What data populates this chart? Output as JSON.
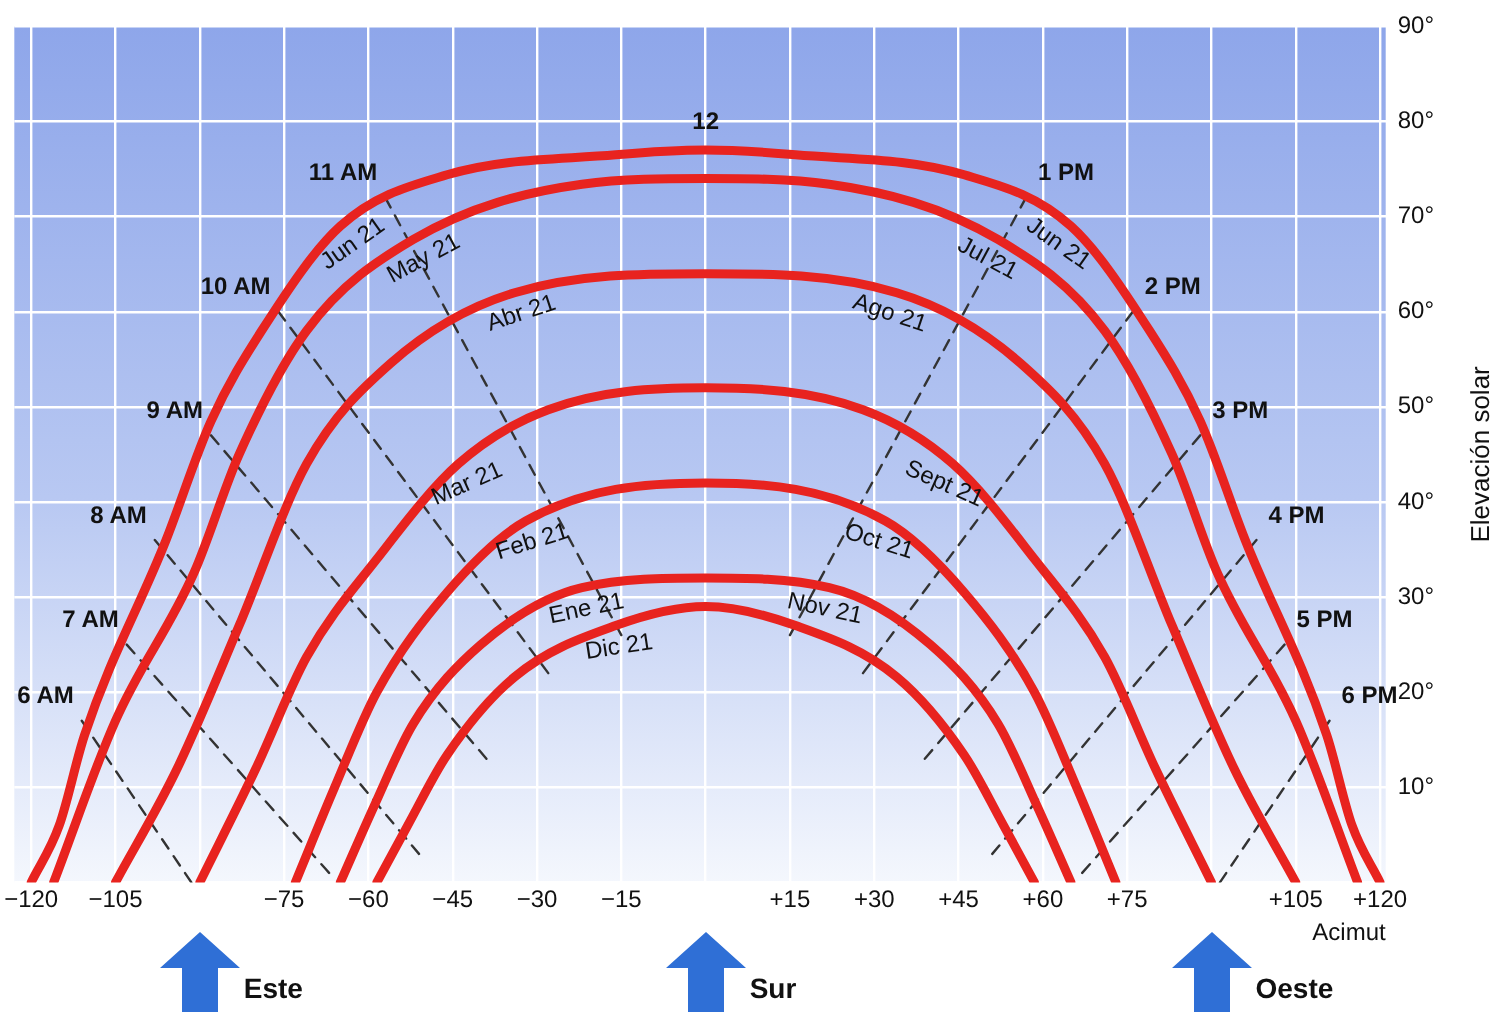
{
  "chart_data": {
    "type": "line",
    "xlabel": "Acimut",
    "ylabel": "Elevación solar",
    "xlim": [
      -123,
      121
    ],
    "ylim": [
      0,
      90
    ],
    "xticks": [
      {
        "value": -120,
        "label": "−120"
      },
      {
        "value": -105,
        "label": "−105"
      },
      {
        "value": -90,
        "label": null
      },
      {
        "value": -75,
        "label": "−75"
      },
      {
        "value": -60,
        "label": "−60"
      },
      {
        "value": -45,
        "label": "−45"
      },
      {
        "value": -30,
        "label": "−30"
      },
      {
        "value": -15,
        "label": "−15"
      },
      {
        "value": 0,
        "label": null
      },
      {
        "value": 15,
        "label": "+15"
      },
      {
        "value": 30,
        "label": "+30"
      },
      {
        "value": 45,
        "label": "+45"
      },
      {
        "value": 60,
        "label": "+60"
      },
      {
        "value": 75,
        "label": "+75"
      },
      {
        "value": 90,
        "label": null
      },
      {
        "value": 105,
        "label": "+105"
      },
      {
        "value": 120,
        "label": "+120"
      }
    ],
    "yticks": [
      {
        "value": 0,
        "label": null
      },
      {
        "value": 10,
        "label": "10°"
      },
      {
        "value": 20,
        "label": "20°"
      },
      {
        "value": 30,
        "label": "30°"
      },
      {
        "value": 40,
        "label": "40°"
      },
      {
        "value": 50,
        "label": "50°"
      },
      {
        "value": 60,
        "label": "60°"
      },
      {
        "value": 70,
        "label": "70°"
      },
      {
        "value": 80,
        "label": "80°"
      },
      {
        "value": 90,
        "label": "90°"
      }
    ],
    "grid": true,
    "series": [
      {
        "color": "#e8231f",
        "x": [
          -120,
          -115,
          -110.5,
          -96,
          -88,
          -79,
          -65,
          -46,
          -16,
          0,
          16,
          46,
          65,
          79,
          88,
          96,
          110.5,
          115,
          120
        ],
        "values": [
          0,
          6,
          15.5,
          36,
          48.5,
          58,
          69,
          74.4,
          76.5,
          77,
          76.5,
          74.4,
          69,
          58,
          48.5,
          36,
          15.5,
          6,
          0
        ]
      },
      {
        "color": "#e8231f",
        "x": [
          -116,
          -105,
          -91,
          -83,
          -71,
          -52,
          -22,
          0,
          22,
          52,
          71,
          83,
          91,
          105,
          116
        ],
        "values": [
          0,
          17,
          32.6,
          45,
          58,
          67.6,
          73.4,
          74,
          73.4,
          67.6,
          58,
          45,
          32.6,
          17,
          0
        ]
      },
      {
        "color": "#e8231f",
        "x": [
          -105,
          -94,
          -83,
          -71,
          -56,
          -34,
          0,
          34,
          56,
          71,
          83,
          94,
          105
        ],
        "values": [
          0,
          12,
          27,
          44,
          54.6,
          62,
          64,
          62,
          54.6,
          44,
          27,
          12,
          0
        ]
      },
      {
        "color": "#e8231f",
        "x": [
          -90,
          -80,
          -71,
          -58.5,
          -44,
          -28,
          0,
          28,
          44,
          58.5,
          71,
          80,
          90
        ],
        "values": [
          0,
          12,
          23.7,
          34,
          44,
          49.7,
          52,
          49.7,
          44,
          34,
          23.7,
          12,
          0
        ]
      },
      {
        "color": "#e8231f",
        "x": [
          -73,
          -66,
          -58.5,
          -46,
          -32,
          0,
          32,
          46,
          58.5,
          66,
          73
        ],
        "values": [
          0,
          10,
          20,
          30.5,
          38,
          42,
          38,
          30.5,
          20,
          10,
          0
        ]
      },
      {
        "color": "#e8231f",
        "x": [
          -65,
          -59,
          -52,
          -40,
          -22,
          0,
          22,
          40,
          52,
          59,
          65
        ],
        "values": [
          0,
          8,
          16.7,
          25,
          31,
          32,
          31,
          25,
          16.7,
          8,
          0
        ]
      },
      {
        "color": "#e8231f",
        "x": [
          -58.5,
          -53,
          -46,
          -34,
          -16,
          0,
          16,
          34,
          46,
          53,
          58.5
        ],
        "values": [
          0,
          6,
          13.4,
          21.6,
          27,
          29,
          27,
          21.6,
          13.4,
          6,
          0
        ]
      },
      {
        "name": "6 AM",
        "color": "#333333",
        "line_style": "dashed",
        "x": [
          -111,
          -91.5
        ],
        "values": [
          17,
          0
        ]
      },
      {
        "name": "7 AM",
        "color": "#333333",
        "line_style": "dashed",
        "x": [
          -103,
          -67
        ],
        "values": [
          25,
          1
        ]
      },
      {
        "name": "8 AM",
        "color": "#333333",
        "line_style": "dashed",
        "x": [
          -98,
          -51
        ],
        "values": [
          36,
          3
        ]
      },
      {
        "name": "9 AM",
        "color": "#333333",
        "line_style": "dashed",
        "x": [
          -88,
          -39
        ],
        "values": [
          47,
          13
        ]
      },
      {
        "name": "10 AM",
        "color": "#333333",
        "line_style": "dashed",
        "x": [
          -76,
          -28
        ],
        "values": [
          60,
          22
        ]
      },
      {
        "name": "11 AM",
        "color": "#333333",
        "line_style": "dashed",
        "x": [
          -57,
          -15
        ],
        "values": [
          72,
          26
        ]
      },
      {
        "name": "1 PM",
        "color": "#333333",
        "line_style": "dashed",
        "x": [
          15,
          57
        ],
        "values": [
          26,
          72
        ]
      },
      {
        "name": "2 PM",
        "color": "#333333",
        "line_style": "dashed",
        "x": [
          28,
          76
        ],
        "values": [
          22,
          60
        ]
      },
      {
        "name": "3 PM",
        "color": "#333333",
        "line_style": "dashed",
        "x": [
          39,
          88
        ],
        "values": [
          13,
          47
        ]
      },
      {
        "name": "4 PM",
        "color": "#333333",
        "line_style": "dashed",
        "x": [
          51,
          98
        ],
        "values": [
          3,
          36
        ]
      },
      {
        "name": "5 PM",
        "color": "#333333",
        "line_style": "dashed",
        "x": [
          67,
          103
        ],
        "values": [
          1,
          25
        ]
      },
      {
        "name": "6 PM",
        "color": "#333333",
        "line_style": "dashed",
        "x": [
          91.5,
          111
        ],
        "values": [
          0,
          17
        ]
      }
    ],
    "annotations": [
      {
        "text": "12",
        "x": 0,
        "y": 77
      },
      {
        "text": "Jun 21",
        "x": -65,
        "y": 69
      },
      {
        "text": "May 21",
        "x": -52,
        "y": 67.6
      },
      {
        "text": "Abr 21",
        "x": -34,
        "y": 62
      },
      {
        "text": "Mar 21",
        "x": -44,
        "y": 44
      },
      {
        "text": "Feb 21",
        "x": -32,
        "y": 38
      },
      {
        "text": "Ene 21",
        "x": -22,
        "y": 31
      },
      {
        "text": "Dic 21",
        "x": -16,
        "y": 27
      },
      {
        "text": "Jun 21",
        "x": 65,
        "y": 69
      },
      {
        "text": "Jul 21",
        "x": 52,
        "y": 67.6
      },
      {
        "text": "Ago 21",
        "x": 34,
        "y": 62
      },
      {
        "text": "Sept 21",
        "x": 44,
        "y": 44
      },
      {
        "text": "Oct 21",
        "x": 32,
        "y": 38
      },
      {
        "text": "Nov 21",
        "x": 22,
        "y": 31
      },
      "Este",
      "Sur",
      "Oeste"
    ]
  }
}
